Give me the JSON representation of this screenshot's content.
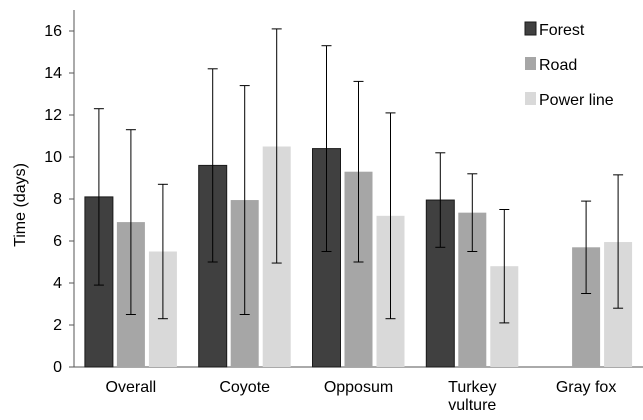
{
  "chart_data": {
    "type": "bar",
    "title": "",
    "xlabel": "",
    "ylabel": "Time (days)",
    "ylim": [
      0,
      17
    ],
    "yticks": [
      0,
      2,
      4,
      6,
      8,
      10,
      12,
      14,
      16
    ],
    "grid": false,
    "legend_position": "top-right",
    "categories": [
      {
        "lines": [
          "Overall"
        ]
      },
      {
        "lines": [
          "Coyote"
        ]
      },
      {
        "lines": [
          "Opposum"
        ]
      },
      {
        "lines": [
          "Turkey",
          "vulture"
        ]
      },
      {
        "lines": [
          "Gray fox"
        ]
      }
    ],
    "series": [
      {
        "name": "Forest",
        "color": "#404040",
        "values": [
          8.1,
          9.6,
          10.4,
          7.95,
          null
        ],
        "error_low": [
          3.9,
          5.0,
          5.5,
          5.7,
          null
        ],
        "error_high": [
          12.3,
          14.2,
          15.3,
          10.2,
          null
        ]
      },
      {
        "name": "Road",
        "color": "#a6a6a6",
        "values": [
          6.9,
          7.95,
          9.3,
          7.35,
          5.7
        ],
        "error_low": [
          2.5,
          2.5,
          5.0,
          5.5,
          3.5
        ],
        "error_high": [
          11.3,
          13.4,
          13.6,
          9.2,
          7.9
        ]
      },
      {
        "name": "Power line",
        "color": "#d9d9d9",
        "values": [
          5.5,
          10.5,
          7.2,
          4.8,
          5.95
        ],
        "error_low": [
          2.3,
          4.95,
          2.3,
          2.1,
          2.8
        ],
        "error_high": [
          8.7,
          16.1,
          12.1,
          7.5,
          9.15
        ]
      }
    ]
  }
}
